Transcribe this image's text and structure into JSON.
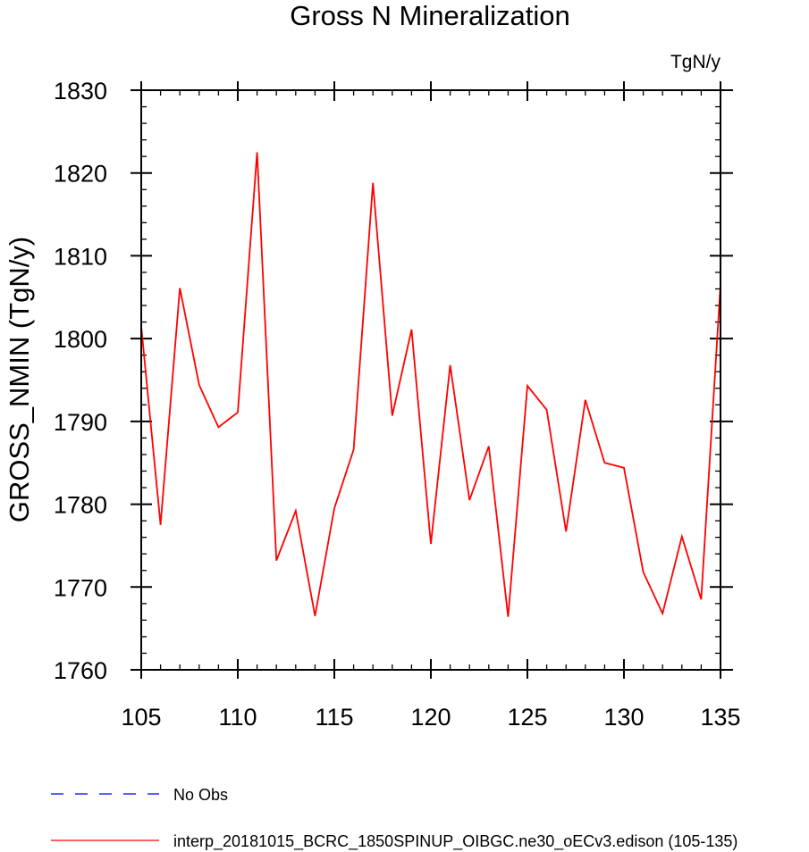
{
  "chart_data": {
    "type": "line",
    "title": "Gross N Mineralization",
    "units_label": "TgN/y",
    "ylabel": "GROSS_NMIN  (TgN/y)",
    "xlabel": "",
    "xlim": [
      105,
      135
    ],
    "ylim": [
      1760,
      1830
    ],
    "x_ticks": [
      105,
      110,
      115,
      120,
      125,
      130,
      135
    ],
    "y_ticks": [
      1760,
      1770,
      1780,
      1790,
      1800,
      1810,
      1820,
      1830
    ],
    "x": [
      105,
      106,
      107,
      108,
      109,
      110,
      111,
      112,
      113,
      114,
      115,
      116,
      117,
      118,
      119,
      120,
      121,
      122,
      123,
      124,
      125,
      126,
      127,
      128,
      129,
      130,
      131,
      132,
      133,
      134,
      135
    ],
    "series": [
      {
        "name": "interp_20181015_BCRC_1850SPINUP_OIBGC.ne30_oECv3.edison (105-135)",
        "color": "#ff0000",
        "values": [
          1801.5,
          1777.5,
          1806.1,
          1794.4,
          1789.3,
          1791.1,
          1822.5,
          1773.2,
          1779.2,
          1766.5,
          1779.5,
          1786.6,
          1818.8,
          1790.7,
          1801.1,
          1775.2,
          1796.8,
          1780.5,
          1787.0,
          1766.4,
          1794.3,
          1791.4,
          1776.7,
          1792.6,
          1785.0,
          1784.4,
          1771.8,
          1766.8,
          1776.1,
          1768.5,
          1806.5
        ]
      }
    ],
    "legend": {
      "placement": "bottom-left",
      "entries": [
        {
          "label": "No Obs",
          "color": "#0000ff",
          "style": "dashed"
        },
        {
          "label": "interp_20181015_BCRC_1850SPINUP_OIBGC.ne30_oECv3.edison (105-135)",
          "color": "#ff0000",
          "style": "solid"
        }
      ]
    },
    "grid": false
  }
}
